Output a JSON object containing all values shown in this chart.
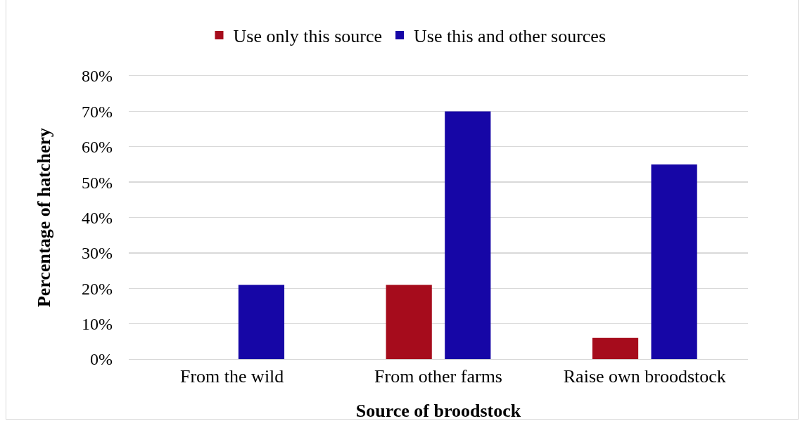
{
  "chart_data": {
    "type": "bar",
    "categories": [
      "From the wild",
      "From other farms",
      "Raise own broodstock"
    ],
    "series": [
      {
        "name": "Use only this source",
        "color": "#a60c1c",
        "values": [
          0,
          21,
          6
        ]
      },
      {
        "name": "Use this and other sources",
        "color": "#1606a6",
        "values": [
          21,
          70,
          55
        ]
      }
    ],
    "xlabel": "Source of broodstock",
    "ylabel": "Percentage of hatchery",
    "ylim": [
      0,
      80
    ],
    "yticks": [
      {
        "value": 0,
        "label": "0%"
      },
      {
        "value": 10,
        "label": "10%"
      },
      {
        "value": 20,
        "label": "20%"
      },
      {
        "value": 30,
        "label": "30%"
      },
      {
        "value": 40,
        "label": "40%"
      },
      {
        "value": 50,
        "label": "50%"
      },
      {
        "value": 60,
        "label": "60%"
      },
      {
        "value": 70,
        "label": "70%"
      },
      {
        "value": 80,
        "label": "80%"
      }
    ],
    "grid": "y",
    "legend": "top"
  }
}
